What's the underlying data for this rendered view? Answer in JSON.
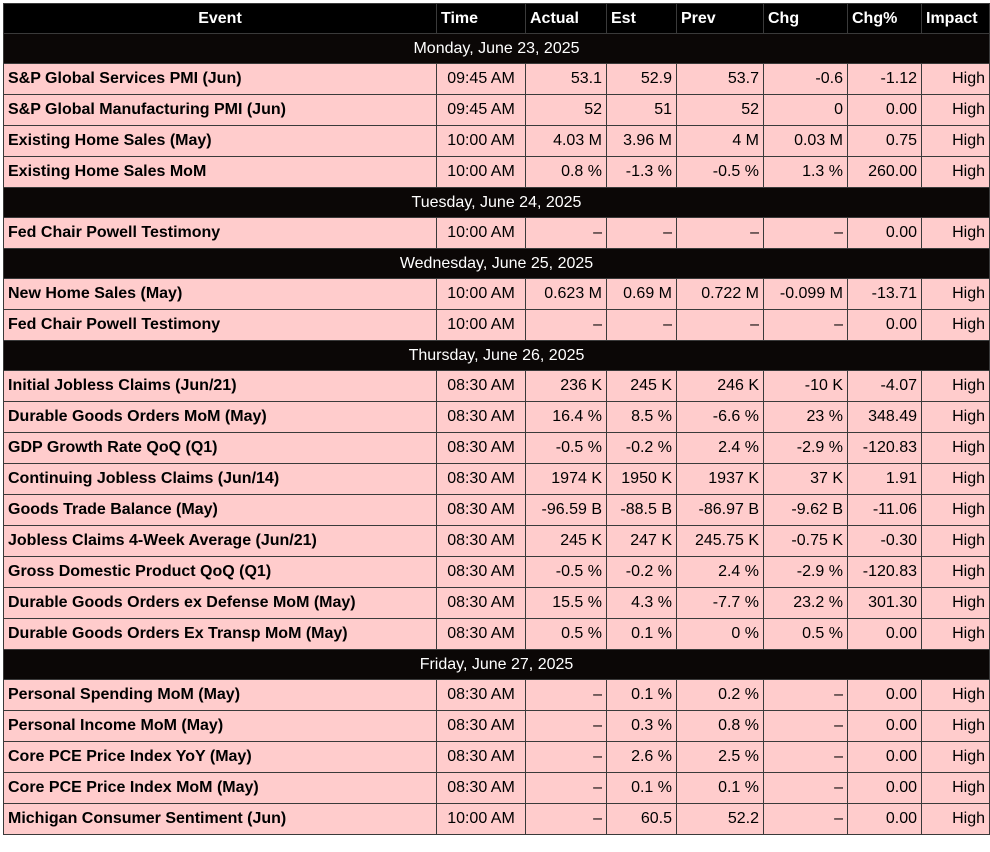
{
  "columns": {
    "event": "Event",
    "time": "Time",
    "actual": "Actual",
    "est": "Est",
    "prev": "Prev",
    "chg": "Chg",
    "chg_pct": "Chg%",
    "impact": "Impact"
  },
  "days": [
    {
      "date": "Monday, June 23, 2025",
      "events": [
        {
          "event": "S&P Global Services PMI (Jun)",
          "time": "09:45 AM",
          "actual": "53.1",
          "est": "52.9",
          "prev": "53.7",
          "chg": "-0.6",
          "chg_pct": "-1.12",
          "impact": "High"
        },
        {
          "event": "S&P Global Manufacturing PMI (Jun)",
          "time": "09:45 AM",
          "actual": "52",
          "est": "51",
          "prev": "52",
          "chg": "0",
          "chg_pct": "0.00",
          "impact": "High"
        },
        {
          "event": "Existing Home Sales (May)",
          "time": "10:00 AM",
          "actual": "4.03 M",
          "est": "3.96 M",
          "prev": "4 M",
          "chg": "0.03 M",
          "chg_pct": "0.75",
          "impact": "High"
        },
        {
          "event": "Existing Home Sales MoM",
          "time": "10:00 AM",
          "actual": "0.8 %",
          "est": "-1.3 %",
          "prev": "-0.5 %",
          "chg": "1.3 %",
          "chg_pct": "260.00",
          "impact": "High"
        }
      ]
    },
    {
      "date": "Tuesday, June 24, 2025",
      "events": [
        {
          "event": "Fed Chair Powell Testimony",
          "time": "10:00 AM",
          "actual": "–",
          "est": "–",
          "prev": "–",
          "chg": "–",
          "chg_pct": "0.00",
          "impact": "High"
        }
      ]
    },
    {
      "date": "Wednesday, June 25, 2025",
      "events": [
        {
          "event": "New Home Sales (May)",
          "time": "10:00 AM",
          "actual": "0.623 M",
          "est": "0.69 M",
          "prev": "0.722 M",
          "chg": "-0.099 M",
          "chg_pct": "-13.71",
          "impact": "High"
        },
        {
          "event": "Fed Chair Powell Testimony",
          "time": "10:00 AM",
          "actual": "–",
          "est": "–",
          "prev": "–",
          "chg": "–",
          "chg_pct": "0.00",
          "impact": "High"
        }
      ]
    },
    {
      "date": "Thursday, June 26, 2025",
      "events": [
        {
          "event": "Initial Jobless Claims (Jun/21)",
          "time": "08:30 AM",
          "actual": "236 K",
          "est": "245 K",
          "prev": "246 K",
          "chg": "-10 K",
          "chg_pct": "-4.07",
          "impact": "High"
        },
        {
          "event": "Durable Goods Orders MoM (May)",
          "time": "08:30 AM",
          "actual": "16.4 %",
          "est": "8.5 %",
          "prev": "-6.6 %",
          "chg": "23 %",
          "chg_pct": "348.49",
          "impact": "High"
        },
        {
          "event": "GDP Growth Rate QoQ (Q1)",
          "time": "08:30 AM",
          "actual": "-0.5 %",
          "est": "-0.2 %",
          "prev": "2.4 %",
          "chg": "-2.9 %",
          "chg_pct": "-120.83",
          "impact": "High"
        },
        {
          "event": "Continuing Jobless Claims (Jun/14)",
          "time": "08:30 AM",
          "actual": "1974 K",
          "est": "1950 K",
          "prev": "1937 K",
          "chg": "37 K",
          "chg_pct": "1.91",
          "impact": "High"
        },
        {
          "event": "Goods Trade Balance (May)",
          "time": "08:30 AM",
          "actual": "-96.59 B",
          "est": "-88.5 B",
          "prev": "-86.97 B",
          "chg": "-9.62 B",
          "chg_pct": "-11.06",
          "impact": "High"
        },
        {
          "event": "Jobless Claims 4-Week Average (Jun/21)",
          "time": "08:30 AM",
          "actual": "245 K",
          "est": "247 K",
          "prev": "245.75 K",
          "chg": "-0.75 K",
          "chg_pct": "-0.30",
          "impact": "High"
        },
        {
          "event": "Gross Domestic Product QoQ (Q1)",
          "time": "08:30 AM",
          "actual": "-0.5 %",
          "est": "-0.2 %",
          "prev": "2.4 %",
          "chg": "-2.9 %",
          "chg_pct": "-120.83",
          "impact": "High"
        },
        {
          "event": "Durable Goods Orders ex Defense MoM (May)",
          "time": "08:30 AM",
          "actual": "15.5 %",
          "est": "4.3 %",
          "prev": "-7.7 %",
          "chg": "23.2 %",
          "chg_pct": "301.30",
          "impact": "High"
        },
        {
          "event": "Durable Goods Orders Ex Transp MoM (May)",
          "time": "08:30 AM",
          "actual": "0.5 %",
          "est": "0.1 %",
          "prev": "0 %",
          "chg": "0.5 %",
          "chg_pct": "0.00",
          "impact": "High"
        }
      ]
    },
    {
      "date": "Friday, June 27, 2025",
      "events": [
        {
          "event": "Personal Spending MoM (May)",
          "time": "08:30 AM",
          "actual": "–",
          "est": "0.1 %",
          "prev": "0.2 %",
          "chg": "–",
          "chg_pct": "0.00",
          "impact": "High"
        },
        {
          "event": "Personal Income MoM (May)",
          "time": "08:30 AM",
          "actual": "–",
          "est": "0.3 %",
          "prev": "0.8 %",
          "chg": "–",
          "chg_pct": "0.00",
          "impact": "High"
        },
        {
          "event": "Core PCE Price Index YoY (May)",
          "time": "08:30 AM",
          "actual": "–",
          "est": "2.6 %",
          "prev": "2.5 %",
          "chg": "–",
          "chg_pct": "0.00",
          "impact": "High"
        },
        {
          "event": "Core PCE Price Index MoM (May)",
          "time": "08:30 AM",
          "actual": "–",
          "est": "0.1 %",
          "prev": "0.1 %",
          "chg": "–",
          "chg_pct": "0.00",
          "impact": "High"
        },
        {
          "event": "Michigan Consumer Sentiment (Jun)",
          "time": "10:00 AM",
          "actual": "–",
          "est": "60.5",
          "prev": "52.2",
          "chg": "–",
          "chg_pct": "0.00",
          "impact": "High"
        }
      ]
    }
  ],
  "colors": {
    "header_bg": "#000000",
    "date_row_bg": "#0b0706",
    "row_bg": "#ffcccc",
    "border": "#3a3a3a"
  }
}
